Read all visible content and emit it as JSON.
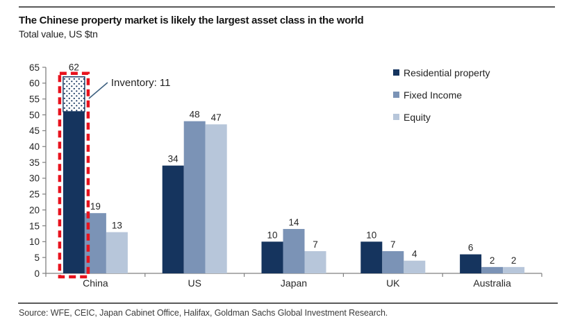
{
  "page": {
    "title": "The Chinese property market is likely the largest asset class in the world",
    "subtitle": "Total value, US $tn",
    "source": "Source: WFE, CEIC, Japan Cabinet Office, Halifax, Goldman Sachs Global Investment Research."
  },
  "colors": {
    "residential": "#15345E",
    "fixed_income": "#7B93B6",
    "equity": "#B7C6DA",
    "highlight_red": "#E8121D",
    "annotation_line": "#3D6080",
    "axis": "#7F7F7F",
    "label_text": "#262626"
  },
  "chart_data": {
    "type": "bar",
    "title": "The Chinese property market is likely the largest asset class in the world",
    "subtitle": "Total value, US $tn",
    "categories": [
      "China",
      "US",
      "Japan",
      "UK",
      "Australia"
    ],
    "series": [
      {
        "name": "Residential property",
        "color_key": "residential",
        "values": [
          62,
          34,
          10,
          10,
          6
        ]
      },
      {
        "name": "Fixed Income",
        "color_key": "fixed_income",
        "values": [
          19,
          48,
          14,
          7,
          2
        ]
      },
      {
        "name": "Equity",
        "color_key": "equity",
        "values": [
          13,
          47,
          7,
          4,
          2
        ]
      }
    ],
    "ylim": [
      0,
      65
    ],
    "ytick_step": 5,
    "grid": false,
    "legend_position": "top-right",
    "annotation": {
      "label": "Inventory: 11",
      "inventory_value": 11,
      "target_category": "China",
      "target_series": "Residential property",
      "highlight_style": "red-dashed-box",
      "segment_pattern": "dotted-white"
    }
  }
}
